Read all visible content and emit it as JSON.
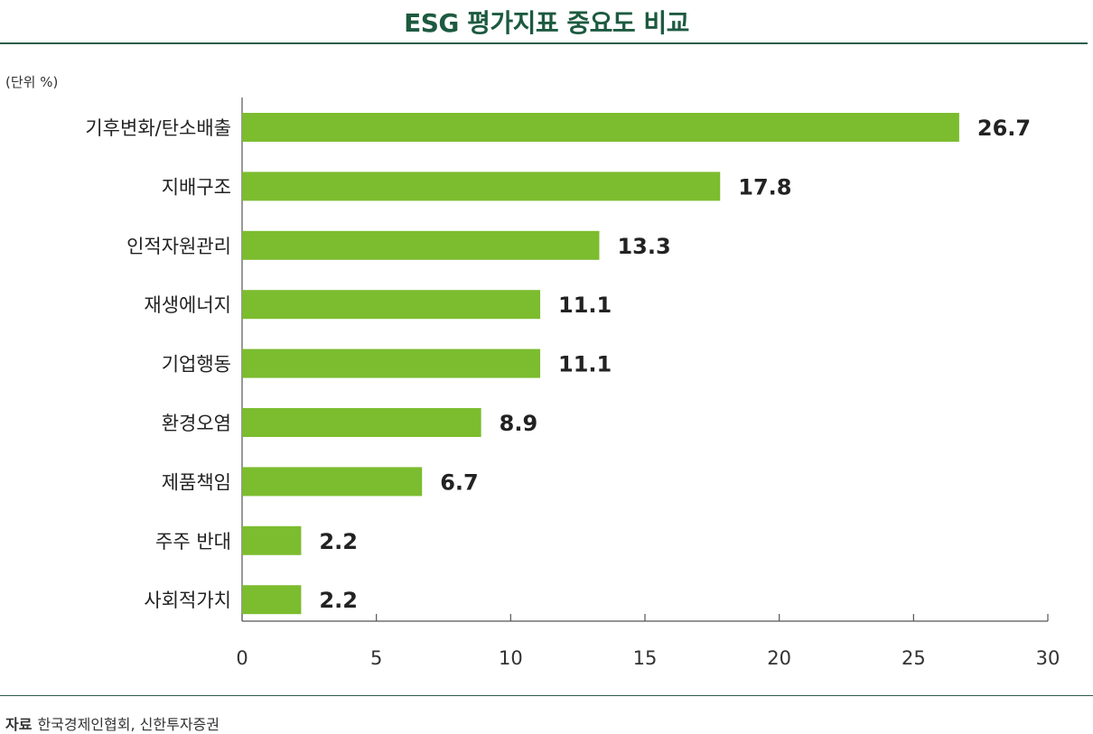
{
  "colors": {
    "title": "#1d5a40",
    "bar": "#7cbc2f",
    "rule": "#2e5d4b",
    "axis": "#555555"
  },
  "unit_label": "(단위 %)",
  "source": {
    "label": "자료",
    "text": "한국경제인협회, 신한투자증권"
  },
  "chart_data": {
    "type": "bar",
    "orientation": "horizontal",
    "title": "ESG 평가지표 중요도 비교",
    "categories": [
      "기후변화/탄소배출",
      "지배구조",
      "인적자원관리",
      "재생에너지",
      "기업행동",
      "환경오염",
      "제품책임",
      "주주 반대",
      "사회적가치"
    ],
    "values": [
      26.7,
      17.8,
      13.3,
      11.1,
      11.1,
      8.9,
      6.7,
      2.2,
      2.2
    ],
    "value_labels": [
      "26.7",
      "17.8",
      "13.3",
      "11.1",
      "11.1",
      "8.9",
      "6.7",
      "2.2",
      "2.2"
    ],
    "xlim": [
      0,
      30
    ],
    "xticks": [
      0,
      5,
      10,
      15,
      20,
      25,
      30
    ],
    "xlabel": "",
    "ylabel": "",
    "grid": false,
    "legend": "none"
  }
}
